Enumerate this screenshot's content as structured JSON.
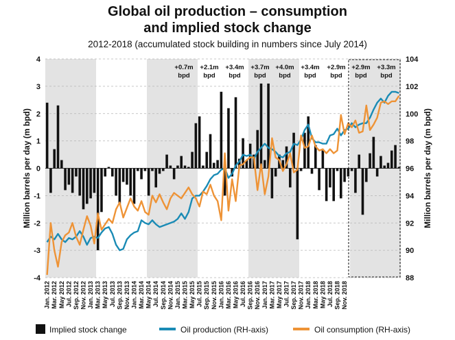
{
  "chart_data": {
    "type": "bar+line",
    "title": "Global oil production – consumption",
    "title_line2": "and implied stock change",
    "subtitle": "2012-2018 (accumulated stock building in numbers since July 2014)",
    "ylabel_left": "Million barrels per day (m bpd)",
    "ylabel_right": "Million barrels per day (m bpd)",
    "ylim_left": [
      -4,
      4
    ],
    "ylim_right": [
      88,
      104
    ],
    "yticks_left": [
      "-4",
      "-3",
      "-2",
      "-1",
      "0",
      "1",
      "2",
      "3",
      "4"
    ],
    "yticks_right": [
      "88",
      "90",
      "92",
      "94",
      "96",
      "98",
      "100",
      "102",
      "104"
    ],
    "xtick_labels": [
      "Jan. 2012",
      "Mar. 2012",
      "May 2012",
      "Jul. 2012",
      "Sep. 2012",
      "Nov. 2012",
      "Jan. 2013",
      "Mar. 2013",
      "May 2013",
      "Jul. 2013",
      "Sep. 2013",
      "Nov. 2013",
      "Jan. 2014",
      "Mar. 2014",
      "May 2014",
      "Jul. 2014",
      "Sep. 2014",
      "Nov. 2014",
      "Jan. 2015",
      "Mar. 2015",
      "May 2015",
      "Jul. 2015",
      "Sep. 2015",
      "Nov. 2015",
      "Jan. 2016",
      "Mar. 2016",
      "May 2016",
      "Jul. 2016",
      "Sep. 2016",
      "Nov. 2016",
      "Jan. 2017",
      "Mar. 2017",
      "May 2017",
      "Jul. 2017",
      "Sep. 2017",
      "Nov. 2017",
      "Jan. 2018",
      "Mar. 2018",
      "May 2018",
      "Jul. 2018",
      "Sep. 2018",
      "Nov. 2018"
    ],
    "annotations": [
      {
        "label": "+0.7m",
        "unit": "bpd"
      },
      {
        "label": "+2.1m",
        "unit": "bpd"
      },
      {
        "label": "+3.4m",
        "unit": "bpd"
      },
      {
        "label": "+3.7m",
        "unit": "bpd"
      },
      {
        "label": "+4.0m",
        "unit": "bpd"
      },
      {
        "label": "+3.4m",
        "unit": "bpd"
      },
      {
        "label": "+2.9m",
        "unit": "bpd"
      },
      {
        "label": "+2.9m",
        "unit": "bpd"
      },
      {
        "label": "+3.3m",
        "unit": "bpd"
      }
    ],
    "legend": [
      {
        "name": "Implied stock change",
        "color": "#111111"
      },
      {
        "name": "Oil production (RH-axis)",
        "color": "#1a8bb5"
      },
      {
        "name": "Oil consumption (RH-axis)",
        "color": "#ee9336"
      }
    ],
    "stock_change": [
      2.4,
      -0.9,
      0.7,
      2.3,
      0.3,
      -0.8,
      -0.6,
      -0.9,
      -0.3,
      -1.0,
      -1.5,
      -1.3,
      -1.1,
      -0.9,
      -3.0,
      -1.6,
      -0.3,
      0.05,
      -0.3,
      -1.0,
      -1.3,
      -0.5,
      -0.6,
      -1.0,
      -1.3,
      -0.1,
      -0.4,
      -0.1,
      -1.0,
      -0.1,
      -0.7,
      -0.2,
      -0.1,
      0.5,
      0.1,
      -0.4,
      0.1,
      0.45,
      0.1,
      0.05,
      0.6,
      1.65,
      1.9,
      0.1,
      0.6,
      1.25,
      0.2,
      0.3,
      2.8,
      -1.0,
      2.2,
      -0.3,
      2.6,
      0.35,
      1.1,
      0.3,
      0.9,
      0.5,
      1.4,
      3.1,
      0.3,
      3.1,
      -1.1,
      -0.3,
      0.5,
      0.3,
      0.8,
      -0.7,
      1.3,
      -2.6,
      -0.1,
      1.3,
      1.9,
      -0.2,
      0.85,
      -0.8,
      0.65,
      -1.2,
      -0.7,
      -1.2,
      -0.1,
      -1.1,
      -0.5,
      -0.3,
      -0.1,
      -0.9,
      0.5,
      -1.7,
      -0.5,
      0.55,
      1.15,
      -0.3,
      0.45,
      0.1,
      0.2,
      0.65,
      0.85,
      0.05
    ],
    "production": [
      90.6,
      91.0,
      90.8,
      91.2,
      90.8,
      90.6,
      90.9,
      90.8,
      91.0,
      91.4,
      91.0,
      90.4,
      90.9,
      91.0,
      90.9,
      91.3,
      91.6,
      91.7,
      91.2,
      90.4,
      90.0,
      90.1,
      90.8,
      91.1,
      91.3,
      91.4,
      92.2,
      92.0,
      91.9,
      92.2,
      91.9,
      91.7,
      91.8,
      91.9,
      92.0,
      92.1,
      92.3,
      92.7,
      92.3,
      92.8,
      93.8,
      94.0,
      94.0,
      94.3,
      94.7,
      95.2,
      95.5,
      95.6,
      95.9,
      96.0,
      95.3,
      95.6,
      96.2,
      96.5,
      97.0,
      96.9,
      97.0,
      96.7,
      97.2,
      97.5,
      97.8,
      97.5,
      97.4,
      97.2,
      96.9,
      96.8,
      97.1,
      97.2,
      97.8,
      97.7,
      98.1,
      98.8,
      99.2,
      98.2,
      97.9,
      97.9,
      97.8,
      97.8,
      98.4,
      98.5,
      98.9,
      98.4,
      98.8,
      98.9,
      99.3,
      99.0,
      99.2,
      99.3,
      99.3,
      99.7,
      100.3,
      100.8,
      101.1,
      100.8,
      101.3,
      101.6,
      101.6,
      101.5
    ],
    "consumption": [
      88.2,
      92.0,
      90.0,
      88.8,
      90.6,
      91.1,
      91.3,
      92.0,
      91.0,
      90.4,
      91.5,
      92.5,
      91.8,
      90.5,
      92.7,
      91.5,
      91.9,
      92.3,
      92.0,
      93.0,
      93.5,
      92.4,
      93.1,
      93.8,
      93.2,
      92.9,
      93.6,
      92.8,
      92.6,
      94.0,
      93.5,
      94.1,
      93.5,
      93.0,
      93.8,
      94.2,
      94.0,
      93.8,
      94.2,
      94.6,
      94.1,
      93.8,
      93.2,
      94.3,
      94.1,
      94.8,
      94.0,
      93.6,
      92.2,
      97.1,
      92.9,
      95.2,
      93.6,
      96.2,
      96.3,
      96.6,
      96.8,
      96.8,
      94.4,
      96.3,
      94.1,
      95.4,
      98.2,
      96.8,
      96.6,
      95.8,
      96.3,
      97.1,
      95.7,
      95.9,
      98.4,
      97.5,
      97.6,
      98.4,
      97.6,
      97.3,
      97.4,
      97.1,
      97.4,
      97.1,
      97.3,
      99.9,
      98.5,
      99.3,
      99.0,
      99.5,
      98.6,
      98.7,
      100.6,
      98.8,
      99.2,
      99.7,
      100.8,
      100.9,
      100.7,
      100.9,
      100.9,
      101.3
    ]
  }
}
